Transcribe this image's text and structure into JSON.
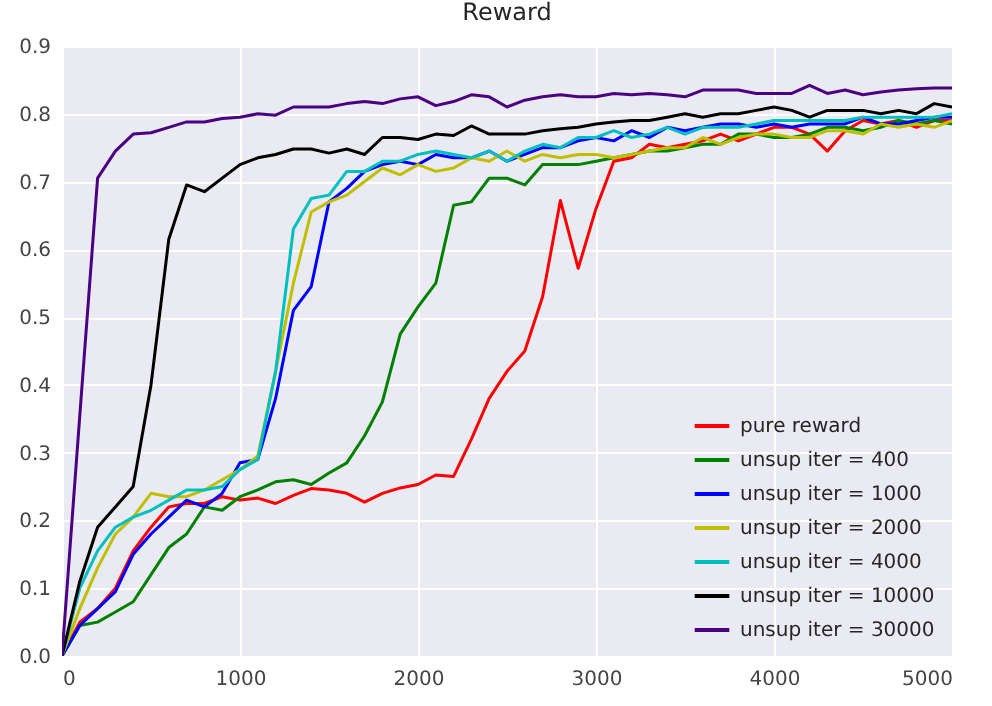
{
  "chart_data": {
    "type": "line",
    "title": "Reward",
    "x": [
      0,
      100,
      200,
      300,
      400,
      500,
      600,
      700,
      800,
      900,
      1000,
      1100,
      1200,
      1300,
      1400,
      1500,
      1600,
      1700,
      1800,
      1900,
      2000,
      2100,
      2200,
      2300,
      2400,
      2500,
      2600,
      2700,
      2800,
      2900,
      3000,
      3100,
      3200,
      3300,
      3400,
      3500,
      3600,
      3700,
      3800,
      3900,
      4000,
      4100,
      4200,
      4300,
      4400,
      4500,
      4600,
      4700,
      4800,
      4900,
      5000
    ],
    "series": [
      {
        "name": "pure reward",
        "color": "#ff0000",
        "values": [
          0,
          0.05,
          0.07,
          0.1,
          0.155,
          0.19,
          0.22,
          0.225,
          0.225,
          0.235,
          0.23,
          0.233,
          0.225,
          0.237,
          0.247,
          0.245,
          0.24,
          0.227,
          0.24,
          0.248,
          0.253,
          0.267,
          0.265,
          0.32,
          0.38,
          0.42,
          0.45,
          0.53,
          0.672,
          0.572,
          0.66,
          0.73,
          0.735,
          0.755,
          0.75,
          0.755,
          0.76,
          0.77,
          0.76,
          0.77,
          0.78,
          0.78,
          0.77,
          0.745,
          0.775,
          0.79,
          0.785,
          0.79,
          0.78,
          0.79,
          0.79
        ]
      },
      {
        "name": "unsup iter = 400",
        "color": "#008000",
        "values": [
          0,
          0.045,
          0.05,
          0.065,
          0.08,
          0.12,
          0.16,
          0.18,
          0.22,
          0.215,
          0.235,
          0.245,
          0.257,
          0.26,
          0.253,
          0.27,
          0.285,
          0.325,
          0.375,
          0.475,
          0.515,
          0.55,
          0.665,
          0.67,
          0.705,
          0.705,
          0.695,
          0.725,
          0.725,
          0.725,
          0.73,
          0.735,
          0.74,
          0.745,
          0.745,
          0.75,
          0.755,
          0.755,
          0.77,
          0.77,
          0.765,
          0.765,
          0.77,
          0.78,
          0.78,
          0.775,
          0.78,
          0.79,
          0.785,
          0.79,
          0.785
        ]
      },
      {
        "name": "unsup iter = 1000",
        "color": "#0000ff",
        "values": [
          0,
          0.045,
          0.07,
          0.095,
          0.15,
          0.18,
          0.205,
          0.23,
          0.22,
          0.24,
          0.285,
          0.29,
          0.38,
          0.51,
          0.545,
          0.67,
          0.69,
          0.715,
          0.725,
          0.73,
          0.725,
          0.74,
          0.735,
          0.735,
          0.745,
          0.73,
          0.74,
          0.75,
          0.75,
          0.76,
          0.765,
          0.76,
          0.775,
          0.765,
          0.78,
          0.775,
          0.78,
          0.785,
          0.785,
          0.78,
          0.785,
          0.78,
          0.785,
          0.785,
          0.785,
          0.795,
          0.785,
          0.785,
          0.79,
          0.795,
          0.795
        ]
      },
      {
        "name": "unsup iter = 2000",
        "color": "#bfbf00",
        "values": [
          0,
          0.07,
          0.13,
          0.18,
          0.205,
          0.24,
          0.235,
          0.235,
          0.245,
          0.26,
          0.275,
          0.295,
          0.42,
          0.55,
          0.655,
          0.67,
          0.68,
          0.7,
          0.72,
          0.71,
          0.725,
          0.715,
          0.72,
          0.735,
          0.73,
          0.745,
          0.73,
          0.74,
          0.735,
          0.74,
          0.74,
          0.735,
          0.74,
          0.745,
          0.75,
          0.75,
          0.765,
          0.755,
          0.765,
          0.77,
          0.77,
          0.765,
          0.765,
          0.775,
          0.775,
          0.77,
          0.785,
          0.78,
          0.785,
          0.78,
          0.79
        ]
      },
      {
        "name": "unsup iter = 4000",
        "color": "#00bfbf",
        "values": [
          0,
          0.1,
          0.155,
          0.19,
          0.205,
          0.215,
          0.23,
          0.245,
          0.245,
          0.25,
          0.275,
          0.29,
          0.42,
          0.63,
          0.675,
          0.68,
          0.715,
          0.715,
          0.73,
          0.73,
          0.74,
          0.745,
          0.74,
          0.735,
          0.745,
          0.73,
          0.745,
          0.755,
          0.75,
          0.765,
          0.765,
          0.775,
          0.765,
          0.77,
          0.78,
          0.77,
          0.78,
          0.78,
          0.78,
          0.785,
          0.79,
          0.79,
          0.79,
          0.79,
          0.79,
          0.795,
          0.795,
          0.795,
          0.795,
          0.795,
          0.8
        ]
      },
      {
        "name": "unsup iter = 10000",
        "color": "#000000",
        "values": [
          0,
          0.11,
          0.19,
          0.22,
          0.25,
          0.4,
          0.615,
          0.695,
          0.685,
          0.705,
          0.725,
          0.735,
          0.74,
          0.748,
          0.748,
          0.742,
          0.748,
          0.74,
          0.765,
          0.765,
          0.762,
          0.77,
          0.768,
          0.782,
          0.77,
          0.77,
          0.77,
          0.775,
          0.778,
          0.78,
          0.785,
          0.788,
          0.79,
          0.79,
          0.795,
          0.8,
          0.795,
          0.8,
          0.8,
          0.805,
          0.81,
          0.805,
          0.795,
          0.805,
          0.805,
          0.805,
          0.8,
          0.805,
          0.8,
          0.815,
          0.81
        ]
      },
      {
        "name": "unsup iter = 30000",
        "color": "#4b0082",
        "values": [
          0,
          0.355,
          0.705,
          0.745,
          0.77,
          0.772,
          0.78,
          0.788,
          0.788,
          0.793,
          0.795,
          0.8,
          0.798,
          0.81,
          0.81,
          0.81,
          0.815,
          0.818,
          0.815,
          0.822,
          0.825,
          0.812,
          0.818,
          0.828,
          0.825,
          0.81,
          0.82,
          0.825,
          0.828,
          0.825,
          0.825,
          0.83,
          0.828,
          0.83,
          0.828,
          0.825,
          0.835,
          0.835,
          0.835,
          0.83,
          0.83,
          0.83,
          0.842,
          0.83,
          0.835,
          0.828,
          0.832,
          0.835,
          0.837,
          0.838,
          0.838
        ]
      }
    ],
    "xlim": [
      0,
      5000
    ],
    "xticks": [
      0,
      1000,
      2000,
      3000,
      4000,
      5000
    ],
    "ylim": [
      0,
      0.9
    ],
    "yticks": [
      {
        "value": 0,
        "label": "0.0"
      },
      0.1,
      0.2,
      0.3,
      0.4,
      0.5,
      0.6,
      0.7,
      0.8,
      0.9
    ],
    "grid": true,
    "legend": "bottom right"
  }
}
